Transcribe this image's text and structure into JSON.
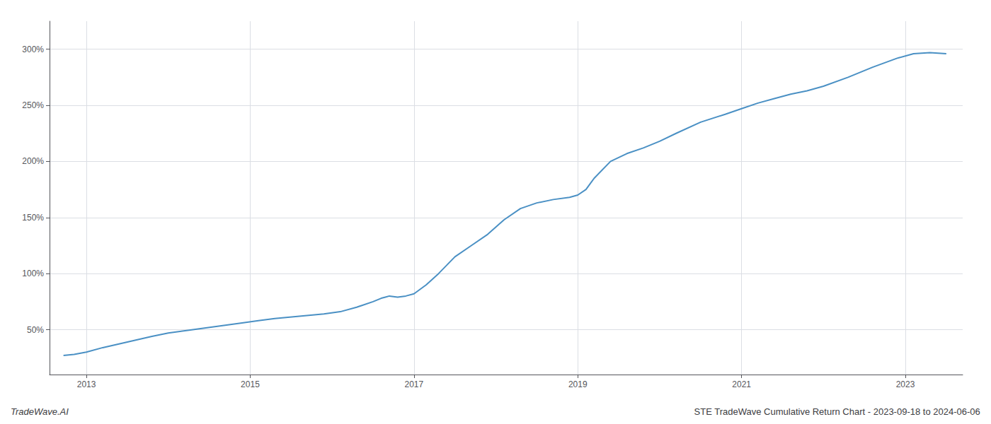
{
  "chart_data": {
    "type": "line",
    "title": "STE TradeWave Cumulative Return Chart - 2023-09-18 to 2024-06-06",
    "annotations": [
      "TradeWave.AI"
    ],
    "color": "#4a90c4",
    "grid": true,
    "xlim": [
      2012.55,
      2023.7
    ],
    "xticks": [
      2013,
      2015,
      2017,
      2019,
      2021,
      2023
    ],
    "ylim": [
      10,
      325
    ],
    "yticks": [
      {
        "value": 50,
        "label": "50%"
      },
      {
        "value": 100,
        "label": "100%"
      },
      {
        "value": 150,
        "label": "150%"
      },
      {
        "value": 200,
        "label": "200%"
      },
      {
        "value": 250,
        "label": "250%"
      },
      {
        "value": 300,
        "label": "300%"
      }
    ],
    "x": [
      2012.72,
      2012.85,
      2013.0,
      2013.2,
      2013.5,
      2013.8,
      2014.0,
      2014.3,
      2014.6,
      2014.9,
      2015.1,
      2015.3,
      2015.6,
      2015.9,
      2016.1,
      2016.3,
      2016.5,
      2016.6,
      2016.65,
      2016.7,
      2016.75,
      2016.8,
      2016.9,
      2017.0,
      2017.15,
      2017.3,
      2017.5,
      2017.7,
      2017.9,
      2018.1,
      2018.3,
      2018.5,
      2018.7,
      2018.9,
      2019.0,
      2019.1,
      2019.2,
      2019.4,
      2019.6,
      2019.8,
      2020.0,
      2020.2,
      2020.5,
      2020.8,
      2021.0,
      2021.2,
      2021.4,
      2021.6,
      2021.8,
      2022.0,
      2022.3,
      2022.6,
      2022.9,
      2023.1,
      2023.3,
      2023.5
    ],
    "values": [
      27,
      28,
      30,
      34,
      39,
      44,
      47,
      50,
      53,
      56,
      58,
      60,
      62,
      64,
      66,
      70,
      75,
      78,
      79,
      80,
      79.5,
      79,
      80,
      82,
      90,
      100,
      115,
      125,
      135,
      148,
      158,
      163,
      166,
      168,
      170,
      175,
      185,
      200,
      207,
      212,
      218,
      225,
      235,
      242,
      247,
      252,
      256,
      260,
      263,
      267,
      275,
      284,
      292,
      296,
      297,
      296
    ]
  }
}
